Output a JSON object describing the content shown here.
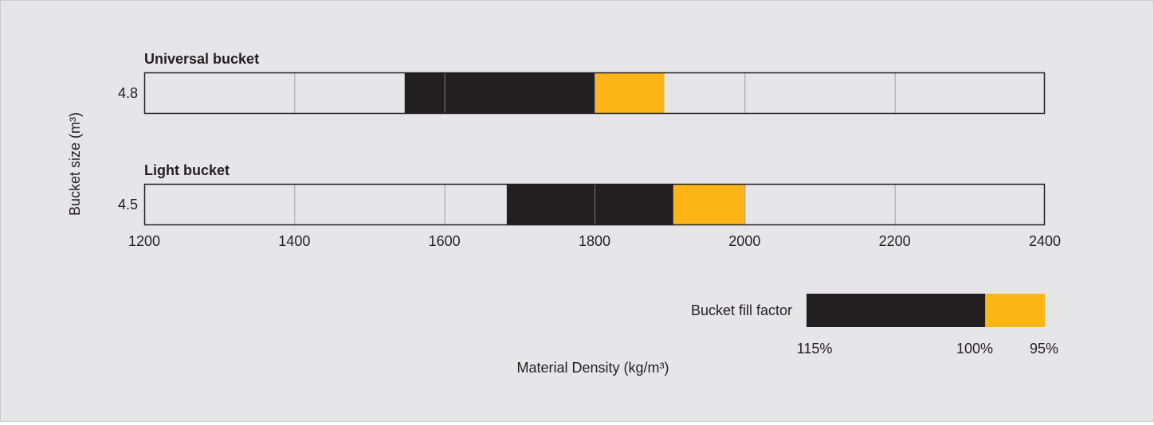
{
  "chart_data": {
    "type": "bar",
    "title": "",
    "xlabel": "Material Density (kg/m³)",
    "ylabel": "Bucket size (m³)",
    "xlim": [
      1200,
      2400
    ],
    "xticks": [
      "1200",
      "1400",
      "1600",
      "1800",
      "2000",
      "2200",
      "2400"
    ],
    "grid": true,
    "series": [
      {
        "name": "Universal bucket",
        "size_label": "4.8",
        "fill_115": 1547,
        "fill_100": 1800,
        "fill_95": 1893
      },
      {
        "name": "Light bucket",
        "size_label": "4.5",
        "fill_115": 1683,
        "fill_100": 1905,
        "fill_95": 2000
      }
    ],
    "legend": {
      "title": "Bucket fill factor",
      "placement": "bottom-right",
      "labels": [
        "115%",
        "100%",
        "95%"
      ]
    },
    "colors": {
      "range_115_to_100": "#231f20",
      "range_100_to_95": "#fbb517",
      "track": "#e6e6e8",
      "grid": "#a0a0a0",
      "border": "#231f20"
    }
  }
}
